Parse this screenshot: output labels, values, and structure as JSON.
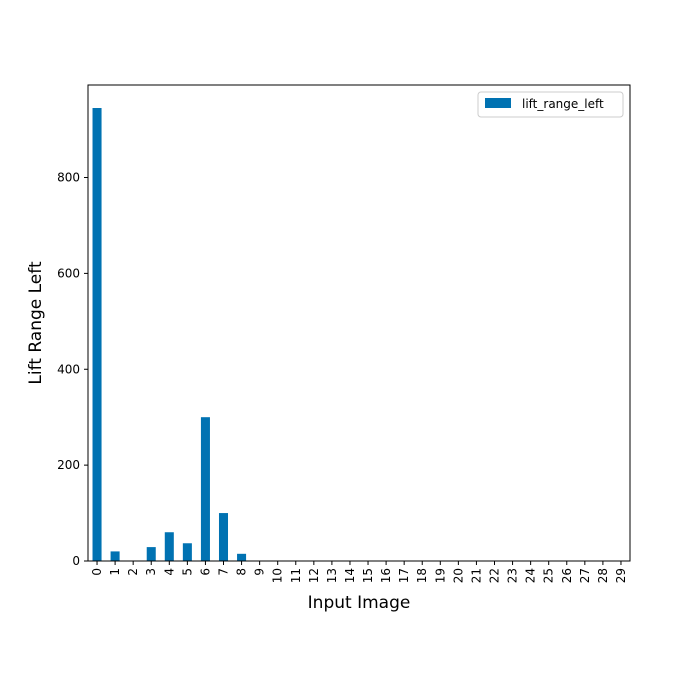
{
  "chart_data": {
    "type": "bar",
    "title": "",
    "xlabel": "Input Image",
    "ylabel": "Lift Range Left",
    "categories": [
      "0",
      "1",
      "2",
      "3",
      "4",
      "5",
      "6",
      "7",
      "8",
      "9",
      "10",
      "11",
      "12",
      "13",
      "14",
      "15",
      "16",
      "17",
      "18",
      "19",
      "20",
      "21",
      "22",
      "23",
      "24",
      "25",
      "26",
      "27",
      "28",
      "29"
    ],
    "series": [
      {
        "name": "lift_range_left",
        "color": "#0072b2",
        "values": [
          945,
          20,
          0,
          29,
          60,
          37,
          300,
          100,
          15,
          0,
          0,
          0,
          0,
          0,
          0,
          0,
          0,
          0,
          0,
          0,
          0,
          0,
          0,
          0,
          0,
          0,
          0,
          0,
          0,
          0
        ]
      }
    ],
    "ylim": [
      0,
      993
    ],
    "yticks": [
      0,
      200,
      400,
      600,
      800
    ],
    "grid": false,
    "legend_position": "top-right"
  }
}
